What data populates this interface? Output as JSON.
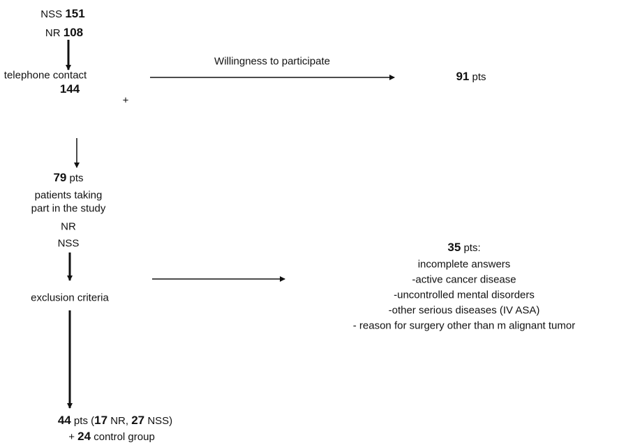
{
  "start": {
    "nss_label": "NSS",
    "nss_count": 151,
    "nr_label": "NR",
    "nr_count": 108
  },
  "contact": {
    "label": "telephone contact",
    "count": 144,
    "plus": "+"
  },
  "willing": {
    "edge_label": "Willingness to participate",
    "count": 91,
    "unit": "pts"
  },
  "study": {
    "count": 79,
    "unit": "pts",
    "lines": [
      "patients taking",
      "part in the study",
      "NR",
      "NSS"
    ]
  },
  "exclusion": {
    "label": "exclusion criteria"
  },
  "excluded": {
    "count": 35,
    "unit": "pts:",
    "reasons": [
      "incomplete answers",
      "-active cancer disease",
      "-uncontrolled mental disorders",
      "-other serious diseases (IV ASA)",
      "- reason for surgery other than m alignant tumor"
    ]
  },
  "final": {
    "count": 44,
    "unit": "pts (",
    "nr_count": 17,
    "nr_label": "NR,",
    "nss_count": 27,
    "nss_label": "NSS)",
    "plus": "+",
    "control_count": 24,
    "control_label": "control group"
  }
}
